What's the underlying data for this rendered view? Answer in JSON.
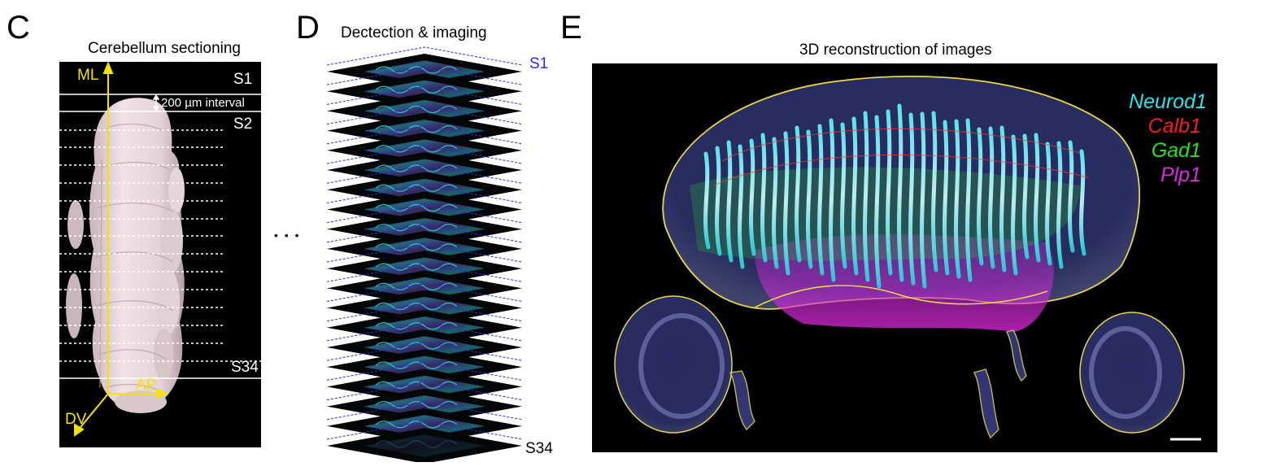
{
  "panels": {
    "c": {
      "letter": "C",
      "title": "Cerebellum sectioning",
      "section_first": "S1",
      "section_second": "S2",
      "section_last": "S34",
      "interval": "200 µm interval",
      "axis_ml": "ML",
      "axis_ap": "AP",
      "axis_dv": "DV"
    },
    "ellipsis": "• • •",
    "d": {
      "letter": "D",
      "title": "Dectection & imaging",
      "section_first": "S1",
      "section_last": "S34",
      "slice_count": 20
    },
    "e": {
      "letter": "E",
      "title": "3D reconstruction of images",
      "legend": [
        {
          "name": "Neurod1",
          "color": "#2de3ea"
        },
        {
          "name": "Calb1",
          "color": "#ff1a1a"
        },
        {
          "name": "Gad1",
          "color": "#28e028"
        },
        {
          "name": "Plp1",
          "color": "#e028e0"
        }
      ]
    }
  },
  "colors": {
    "axis_yellow": "#f2e400",
    "dashed_blue": "#2a2ae8",
    "organ_pink": "#e8d8dc"
  }
}
